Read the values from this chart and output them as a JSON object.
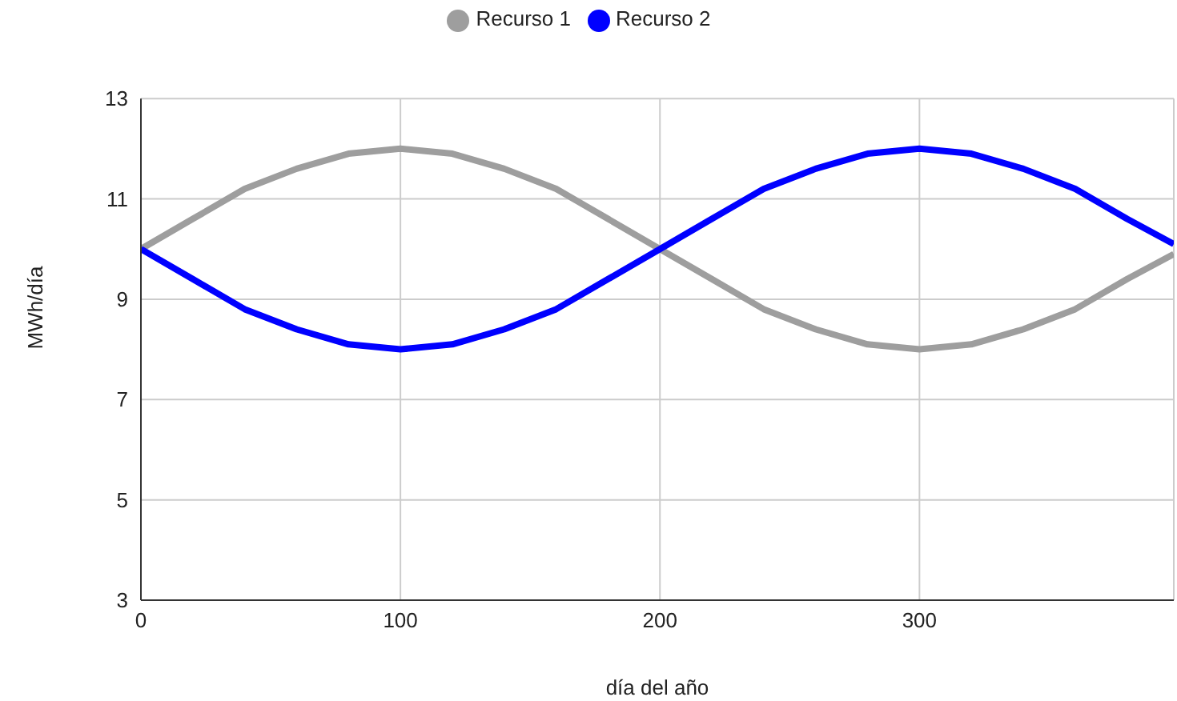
{
  "chart_data": {
    "type": "line",
    "xlabel": "día del año",
    "ylabel": "MWh/día",
    "x": [
      0,
      20,
      40,
      60,
      80,
      100,
      120,
      140,
      160,
      180,
      200,
      220,
      240,
      260,
      280,
      300,
      320,
      340,
      360,
      380,
      398
    ],
    "series": [
      {
        "name": "Recurso 1",
        "color": "#9e9e9e",
        "values": [
          10,
          10.6,
          11.2,
          11.6,
          11.9,
          12,
          11.9,
          11.6,
          11.2,
          10.6,
          10,
          9.4,
          8.8,
          8.4,
          8.1,
          8,
          8.1,
          8.4,
          8.8,
          9.4,
          9.9
        ]
      },
      {
        "name": "Recurso 2",
        "color": "#0000ff",
        "values": [
          10,
          9.4,
          8.8,
          8.4,
          8.1,
          8,
          8.1,
          8.4,
          8.8,
          9.4,
          10,
          10.6,
          11.2,
          11.6,
          11.9,
          12,
          11.9,
          11.6,
          11.2,
          10.6,
          10.1
        ]
      }
    ],
    "xlim": [
      0,
      398
    ],
    "xticks": [
      0,
      100,
      200,
      300
    ],
    "ylim": [
      3,
      13
    ],
    "yticks": [
      3,
      5,
      7,
      9,
      11,
      13
    ],
    "grid": true,
    "legend": "top",
    "marker": "none",
    "line_style": "solid"
  }
}
